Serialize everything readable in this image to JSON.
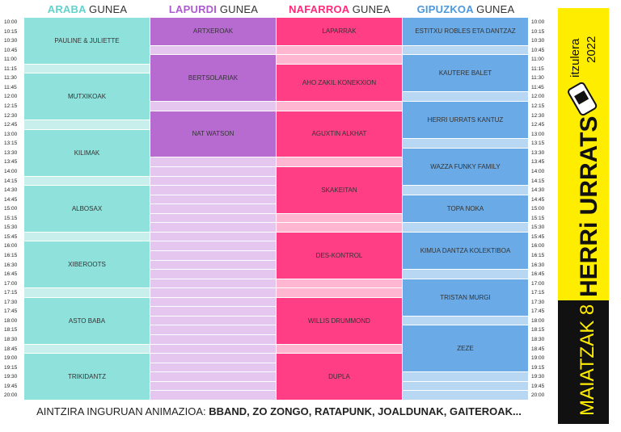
{
  "columns": [
    {
      "name": "ARABA",
      "suffix": "GUNEA",
      "events": [
        "PAULINE & JULIETTE",
        "MUTXIKOAK",
        "KILIMAK",
        "ALBOSAX",
        "XIBEROOTS",
        "ASTO BABA",
        "TRIKIDANTZ"
      ]
    },
    {
      "name": "LAPURDI",
      "suffix": "GUNEA",
      "events": [
        "ARTXEROAK",
        "BERTSOLARIAK",
        "NAT WATSON"
      ]
    },
    {
      "name": "NAFARROA",
      "suffix": "GUNEA",
      "events": [
        "LAPARRAK",
        "AHO ZAKIL KONEKXION",
        "AGUXTIN ALKHAT",
        "SKAKEITAN",
        "DES-KONTROL",
        "WILLIS DRUMMOND",
        "DUPLA"
      ]
    },
    {
      "name": "GIPUZKOA",
      "suffix": "GUNEA",
      "events": [
        "ESTITXU ROBLES ETA DANTZAZ",
        "KAUTERE BALET",
        "HERRI URRATS KANTUZ",
        "WAZZA FUNKY FAMILY",
        "TOPA NOKA",
        "KIMUA DANTZA KOLEKTIBOA",
        "TRISTAN MURGI",
        "ZEZE"
      ]
    }
  ],
  "times": [
    "10:00",
    "10:15",
    "10:30",
    "10:45",
    "11:00",
    "11:15",
    "11:30",
    "11:45",
    "12:00",
    "12:15",
    "12:30",
    "12:45",
    "13:00",
    "13:15",
    "13:30",
    "13:45",
    "14:00",
    "14:15",
    "14:30",
    "14:45",
    "15:00",
    "15:15",
    "15:30",
    "15:45",
    "16:00",
    "16:15",
    "16:30",
    "16:45",
    "17:00",
    "17:15",
    "17:30",
    "17:45",
    "18:00",
    "18:15",
    "18:30",
    "18:45",
    "19:00",
    "19:15",
    "19:30",
    "19:45",
    "20:00"
  ],
  "footer": {
    "lead": "AINTZIRA INGURUAN ANIMAZIOA:",
    "bands": "BBAND, ZO ZONGO, RATAPUNK, JOALDUNAK, GAITEROAK..."
  },
  "sidebar": {
    "edition": "itzulera",
    "year": "2022",
    "title": "HERRi URRATS",
    "date": "MAIATZAK 8"
  }
}
